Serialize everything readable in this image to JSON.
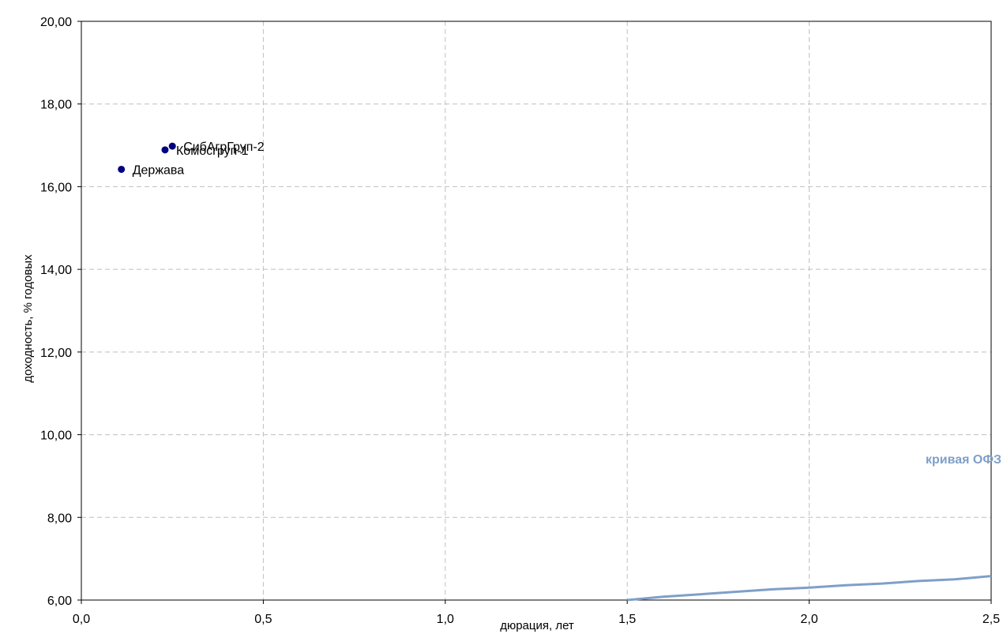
{
  "chart_data": {
    "type": "scatter",
    "title": "",
    "xlabel": "дюрация, лет",
    "ylabel": "доходность, % годовых",
    "xlim": [
      0,
      2.5
    ],
    "ylim": [
      6,
      20
    ],
    "x_ticks": [
      0,
      0.5,
      1.0,
      1.5,
      2.0,
      2.5
    ],
    "x_tick_labels": [
      "0,0",
      "0,5",
      "1,0",
      "1,5",
      "2,0",
      "2,5"
    ],
    "y_ticks": [
      6,
      8,
      10,
      12,
      14,
      16,
      18,
      20
    ],
    "y_tick_labels": [
      "6,00",
      "8,00",
      "10,00",
      "12,00",
      "14,00",
      "16,00",
      "18,00",
      "20,00"
    ],
    "grid": true,
    "points": [
      {
        "label": "Держава",
        "x": 0.11,
        "y": 16.42
      },
      {
        "label": "Комосгруп-1",
        "x": 0.23,
        "y": 16.89
      },
      {
        "label": "СибАгрГруп-2",
        "x": 0.25,
        "y": 16.98
      }
    ],
    "curve": {
      "name": "кривая ОФЗ",
      "color": "#7f9fc8",
      "x": [
        1.5,
        1.6,
        1.7,
        1.8,
        1.9,
        2.0,
        2.1,
        2.2,
        2.3,
        2.4,
        2.5
      ],
      "y": [
        6.0,
        6.08,
        6.14,
        6.2,
        6.26,
        6.3,
        6.36,
        6.4,
        6.46,
        6.5,
        6.58
      ]
    },
    "point_color": "#000080"
  }
}
